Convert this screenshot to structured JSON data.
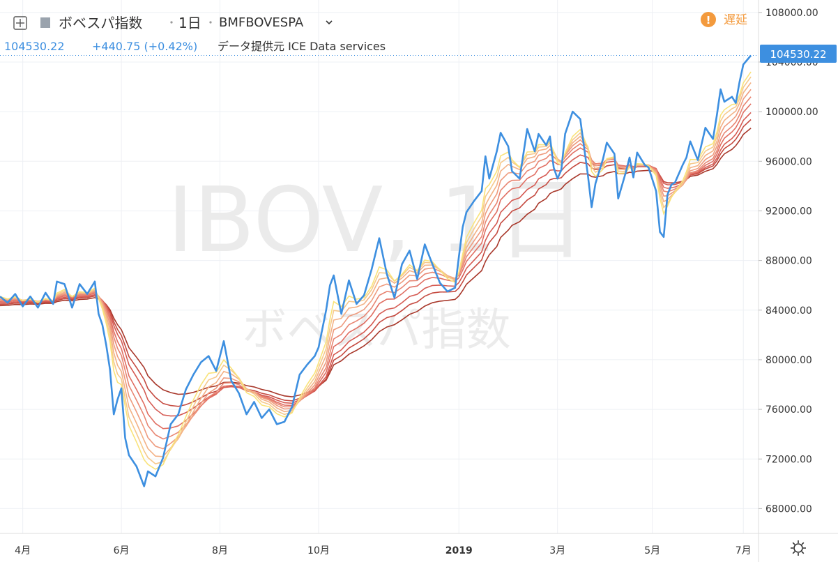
{
  "header": {
    "symbol_name": "ボベスパ指数",
    "interval": "1日",
    "ticker": "BMFBOVESPA",
    "last_price": "104530.22",
    "change": "+440.75 (+0.42%)",
    "provider": "データ提供元 ICE Data services",
    "delayed_label": "遅延",
    "price_badge": "104530.22"
  },
  "watermark": {
    "main": "IBOV, 1日",
    "sub": "ボベスパ指数"
  },
  "colors": {
    "price": "#3d8fe0",
    "ribbon": [
      "#f9e37a",
      "#f6c98c",
      "#f3b185",
      "#ee9a7d",
      "#e88572",
      "#e06e62",
      "#d55a52",
      "#c54a40",
      "#a8372a"
    ],
    "delayed": "#f39a3d",
    "grid": "#eef0f4"
  },
  "chart_data": {
    "type": "line",
    "ylim": [
      66000,
      109000
    ],
    "yticks": [
      "108000.00",
      "104000.00",
      "100000.00",
      "96000.00",
      "92000.00",
      "88000.00",
      "84000.00",
      "80000.00",
      "76000.00",
      "72000.00",
      "68000.00"
    ],
    "xticks": [
      {
        "t": 0.03,
        "label": "4月"
      },
      {
        "t": 0.16,
        "label": "6月"
      },
      {
        "t": 0.29,
        "label": "8月"
      },
      {
        "t": 0.42,
        "label": "10月"
      },
      {
        "t": 0.605,
        "label": "2019"
      },
      {
        "t": 0.735,
        "label": "3月"
      },
      {
        "t": 0.86,
        "label": "5月"
      },
      {
        "t": 0.98,
        "label": "7月"
      }
    ],
    "series": [
      {
        "values_by_t": [
          [
            0.0,
            85100
          ],
          [
            0.01,
            84600
          ],
          [
            0.02,
            85300
          ],
          [
            0.03,
            84300
          ],
          [
            0.04,
            85100
          ],
          [
            0.05,
            84200
          ],
          [
            0.06,
            85400
          ],
          [
            0.07,
            84500
          ],
          [
            0.075,
            86300
          ],
          [
            0.085,
            86100
          ],
          [
            0.095,
            84200
          ],
          [
            0.105,
            86100
          ],
          [
            0.115,
            85300
          ],
          [
            0.125,
            86300
          ],
          [
            0.13,
            83700
          ],
          [
            0.135,
            82800
          ],
          [
            0.14,
            81200
          ],
          [
            0.145,
            79200
          ],
          [
            0.15,
            75600
          ],
          [
            0.155,
            76800
          ],
          [
            0.16,
            77700
          ],
          [
            0.165,
            73700
          ],
          [
            0.17,
            72300
          ],
          [
            0.18,
            71400
          ],
          [
            0.19,
            69800
          ],
          [
            0.195,
            71000
          ],
          [
            0.205,
            70600
          ],
          [
            0.215,
            72100
          ],
          [
            0.225,
            74800
          ],
          [
            0.235,
            75600
          ],
          [
            0.245,
            77600
          ],
          [
            0.255,
            78800
          ],
          [
            0.265,
            79800
          ],
          [
            0.275,
            80300
          ],
          [
            0.285,
            79100
          ],
          [
            0.295,
            81500
          ],
          [
            0.305,
            78300
          ],
          [
            0.315,
            77300
          ],
          [
            0.325,
            75600
          ],
          [
            0.335,
            76600
          ],
          [
            0.345,
            75300
          ],
          [
            0.355,
            76000
          ],
          [
            0.365,
            74800
          ],
          [
            0.375,
            75000
          ],
          [
            0.385,
            76200
          ],
          [
            0.395,
            78800
          ],
          [
            0.405,
            79600
          ],
          [
            0.415,
            80300
          ],
          [
            0.42,
            81000
          ],
          [
            0.43,
            84000
          ],
          [
            0.435,
            86000
          ],
          [
            0.44,
            86800
          ],
          [
            0.45,
            83700
          ],
          [
            0.46,
            86400
          ],
          [
            0.47,
            84500
          ],
          [
            0.48,
            85200
          ],
          [
            0.49,
            87300
          ],
          [
            0.5,
            89800
          ],
          [
            0.51,
            86900
          ],
          [
            0.52,
            85000
          ],
          [
            0.53,
            87700
          ],
          [
            0.54,
            88800
          ],
          [
            0.55,
            86500
          ],
          [
            0.56,
            89300
          ],
          [
            0.57,
            87700
          ],
          [
            0.58,
            86200
          ],
          [
            0.59,
            85500
          ],
          [
            0.6,
            85800
          ],
          [
            0.605,
            88300
          ],
          [
            0.61,
            90700
          ],
          [
            0.615,
            91900
          ],
          [
            0.625,
            92800
          ],
          [
            0.635,
            93600
          ],
          [
            0.64,
            96400
          ],
          [
            0.645,
            94600
          ],
          [
            0.655,
            96800
          ],
          [
            0.66,
            98300
          ],
          [
            0.67,
            97200
          ],
          [
            0.675,
            95200
          ],
          [
            0.685,
            94600
          ],
          [
            0.695,
            98600
          ],
          [
            0.705,
            96800
          ],
          [
            0.71,
            98200
          ],
          [
            0.72,
            97300
          ],
          [
            0.725,
            98000
          ],
          [
            0.73,
            95500
          ],
          [
            0.735,
            94600
          ],
          [
            0.74,
            95300
          ],
          [
            0.745,
            98200
          ],
          [
            0.755,
            100000
          ],
          [
            0.765,
            99400
          ],
          [
            0.775,
            94900
          ],
          [
            0.78,
            92300
          ],
          [
            0.785,
            94200
          ],
          [
            0.795,
            96200
          ],
          [
            0.8,
            97500
          ],
          [
            0.81,
            96600
          ],
          [
            0.815,
            93000
          ],
          [
            0.825,
            95100
          ],
          [
            0.83,
            96300
          ],
          [
            0.835,
            94700
          ],
          [
            0.84,
            96700
          ],
          [
            0.85,
            95700
          ],
          [
            0.855,
            95500
          ],
          [
            0.865,
            93600
          ],
          [
            0.87,
            90300
          ],
          [
            0.875,
            89900
          ],
          [
            0.88,
            93300
          ],
          [
            0.885,
            94100
          ],
          [
            0.89,
            94300
          ],
          [
            0.9,
            95700
          ],
          [
            0.905,
            96300
          ],
          [
            0.91,
            97600
          ],
          [
            0.92,
            96100
          ],
          [
            0.93,
            98700
          ],
          [
            0.94,
            97800
          ],
          [
            0.945,
            99700
          ],
          [
            0.95,
            101800
          ],
          [
            0.955,
            100800
          ],
          [
            0.965,
            101200
          ],
          [
            0.97,
            100700
          ],
          [
            0.975,
            102400
          ],
          [
            0.98,
            103800
          ],
          [
            0.99,
            104530
          ]
        ]
      }
    ],
    "price_line_value": 104530.22
  }
}
